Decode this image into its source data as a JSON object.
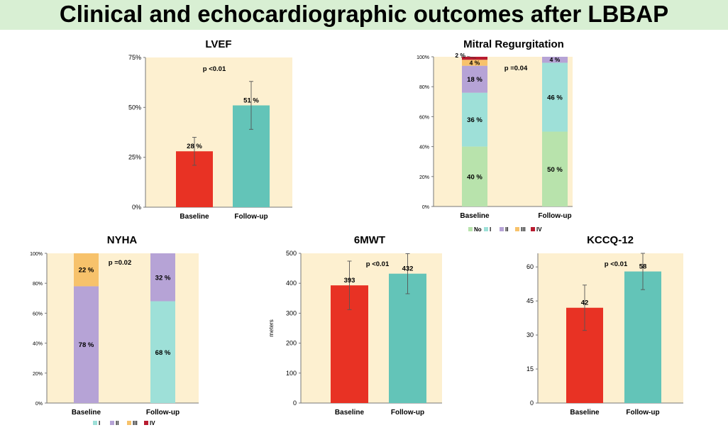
{
  "header": {
    "title": "Clinical and echocardiographic outcomes after LBBAP"
  },
  "colors": {
    "baseline": "#e83224",
    "followup": "#63c4b8",
    "plot_bg": "#fdf0d0",
    "banner": "#d8efd3",
    "No": "#b8e3ac",
    "I": "#9ee0d8",
    "II": "#b6a3d6",
    "III": "#f7c26b",
    "IV": "#b81c30"
  },
  "chart_data": [
    {
      "id": "lvef",
      "type": "bar",
      "title": "LVEF",
      "categories": [
        "Baseline",
        "Follow-up"
      ],
      "values": [
        28,
        51
      ],
      "error_low": [
        21,
        39
      ],
      "error_high": [
        35,
        63
      ],
      "labels": [
        "28 %",
        "51 %"
      ],
      "ylim": [
        0,
        75
      ],
      "yticks": [
        0,
        25,
        50,
        75
      ],
      "ytick_labels": [
        "0%",
        "25%",
        "50%",
        "75%"
      ],
      "pvalue": "p <0.01",
      "ylabel": ""
    },
    {
      "id": "mr",
      "type": "bar",
      "stacked": true,
      "title": "Mitral Regurgitation",
      "categories": [
        "Baseline",
        "Follow-up"
      ],
      "series": [
        {
          "name": "No",
          "values": [
            40,
            50
          ],
          "labels": [
            "40 %",
            "50 %"
          ]
        },
        {
          "name": "I",
          "values": [
            36,
            46
          ],
          "labels": [
            "36 %",
            "46 %"
          ]
        },
        {
          "name": "II",
          "values": [
            18,
            4
          ],
          "labels": [
            "18 %",
            "4 %"
          ]
        },
        {
          "name": "III",
          "values": [
            4,
            0
          ],
          "labels": [
            "4 %",
            ""
          ]
        },
        {
          "name": "IV",
          "values": [
            2,
            0
          ],
          "labels": [
            "2 %",
            ""
          ]
        }
      ],
      "ylim": [
        0,
        100
      ],
      "yticks": [
        0,
        20,
        40,
        60,
        80,
        100
      ],
      "ytick_labels": [
        "0%",
        "20%",
        "40%",
        "60%",
        "80%",
        "100%"
      ],
      "pvalue": "p =0.04",
      "legend": [
        "No",
        "I",
        "II",
        "III",
        "IV"
      ]
    },
    {
      "id": "nyha",
      "type": "bar",
      "stacked": true,
      "title": "NYHA",
      "categories": [
        "Baseline",
        "Follow-up"
      ],
      "series": [
        {
          "name": "I",
          "values": [
            0,
            68
          ],
          "labels": [
            "",
            "68 %"
          ]
        },
        {
          "name": "II",
          "values": [
            78,
            32
          ],
          "labels": [
            "78 %",
            "32 %"
          ]
        },
        {
          "name": "III",
          "values": [
            22,
            0
          ],
          "labels": [
            "22 %",
            ""
          ]
        },
        {
          "name": "IV",
          "values": [
            0,
            0
          ],
          "labels": [
            "",
            ""
          ]
        }
      ],
      "ylim": [
        0,
        100
      ],
      "yticks": [
        0,
        20,
        40,
        60,
        80,
        100
      ],
      "ytick_labels": [
        "0%",
        "20%",
        "40%",
        "60%",
        "80%",
        "100%"
      ],
      "pvalue": "p =0.02",
      "legend": [
        "I",
        "II",
        "III",
        "IV"
      ]
    },
    {
      "id": "smwt",
      "type": "bar",
      "title": "6MWT",
      "categories": [
        "Baseline",
        "Follow-up"
      ],
      "values": [
        393,
        432
      ],
      "error_low": [
        312,
        365
      ],
      "error_high": [
        474,
        499
      ],
      "labels": [
        "393",
        "432"
      ],
      "ylim": [
        0,
        500
      ],
      "yticks": [
        0,
        100,
        200,
        300,
        400,
        500
      ],
      "ytick_labels": [
        "0",
        "100",
        "200",
        "300",
        "400",
        "500"
      ],
      "pvalue": "p <0.01",
      "ylabel": "meters"
    },
    {
      "id": "kccq",
      "type": "bar",
      "title": "KCCQ-12",
      "categories": [
        "Baseline",
        "Follow-up"
      ],
      "values": [
        42,
        58
      ],
      "error_low": [
        32,
        50
      ],
      "error_high": [
        52,
        66
      ],
      "labels": [
        "42",
        "58"
      ],
      "ylim": [
        0,
        66
      ],
      "yticks": [
        0,
        15,
        30,
        45,
        60
      ],
      "ytick_labels": [
        "0",
        "15",
        "30",
        "45",
        "60"
      ],
      "pvalue": "p <0.01",
      "ylabel": ""
    }
  ]
}
